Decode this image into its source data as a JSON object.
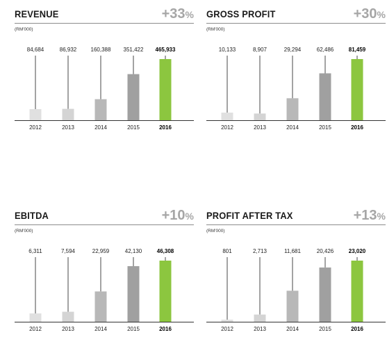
{
  "colors": {
    "bar_2012": "#e0e0e0",
    "bar_2013": "#d4d4d4",
    "bar_2014": "#b8b8b8",
    "bar_2015": "#a0a0a0",
    "bar_2016": "#8cc63f",
    "growth": "#a6a6a6"
  },
  "chart_data": [
    {
      "type": "bar",
      "title": "REVENUE",
      "growth_value": "+33",
      "growth_unit": "%",
      "unit": "(RM'000)",
      "categories": [
        "2012",
        "2013",
        "2014",
        "2015",
        "2016"
      ],
      "values": [
        84684,
        86932,
        160388,
        351422,
        465933
      ],
      "labels": [
        "84,684",
        "86,932",
        "160,388",
        "351,422",
        "465,933"
      ],
      "highlight": "2016"
    },
    {
      "type": "bar",
      "title": "GROSS PROFIT",
      "growth_value": "+30",
      "growth_unit": "%",
      "unit": "(RM'000)",
      "categories": [
        "2012",
        "2013",
        "2014",
        "2015",
        "2016"
      ],
      "values": [
        10133,
        8907,
        29294,
        62486,
        81459
      ],
      "labels": [
        "10,133",
        "8,907",
        "29,294",
        "62,486",
        "81,459"
      ],
      "highlight": "2016"
    },
    {
      "type": "bar",
      "title": "EBITDA",
      "growth_value": "+10",
      "growth_unit": "%",
      "unit": "(RM'000)",
      "categories": [
        "2012",
        "2013",
        "2014",
        "2015",
        "2016"
      ],
      "values": [
        6311,
        7594,
        22959,
        42130,
        46308
      ],
      "labels": [
        "6,311",
        "7,594",
        "22,959",
        "42,130",
        "46,308"
      ],
      "highlight": "2016"
    },
    {
      "type": "bar",
      "title": "PROFIT AFTER TAX",
      "growth_value": "+13",
      "growth_unit": "%",
      "unit": "(RM'000)",
      "categories": [
        "2012",
        "2013",
        "2014",
        "2015",
        "2016"
      ],
      "values": [
        801,
        2713,
        11681,
        20426,
        23020
      ],
      "labels": [
        "801",
        "2,713",
        "11,681",
        "20,426",
        "23,020"
      ],
      "highlight": "2016"
    }
  ]
}
